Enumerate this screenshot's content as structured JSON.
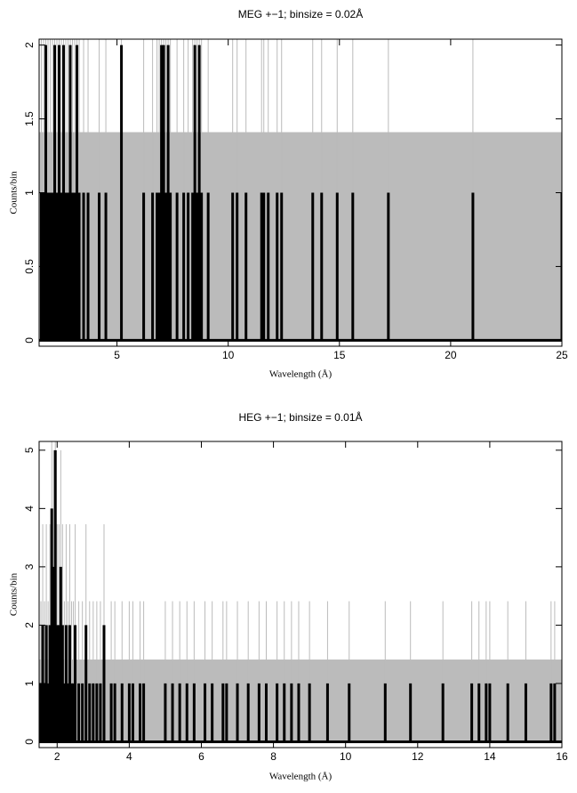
{
  "chart_data": [
    {
      "type": "spectrum",
      "title": "MEG +−1; binsize = 0.02Å",
      "x_label": "Wavelength (Å)",
      "y_label": "Counts/bin",
      "xlim": [
        1.5,
        25
      ],
      "ylim": [
        -0.04,
        2.04
      ],
      "xticks": [
        5,
        10,
        15,
        20,
        25
      ],
      "yticks": [
        0,
        0.5,
        1,
        1.5,
        2
      ],
      "band": 1.41,
      "band_color": "#bbbbbb",
      "color": "#000000",
      "error_color": "#bbbbbb",
      "x": [
        1.6,
        1.7,
        1.8,
        1.9,
        2.0,
        2.1,
        2.2,
        2.3,
        2.4,
        2.5,
        2.6,
        2.7,
        2.8,
        2.9,
        3.0,
        3.1,
        3.2,
        3.3,
        3.5,
        3.7,
        4.2,
        4.5,
        5.2,
        6.2,
        6.6,
        6.8,
        6.9,
        7.0,
        7.1,
        7.2,
        7.3,
        7.4,
        7.7,
        8.0,
        8.2,
        8.4,
        8.5,
        8.6,
        8.7,
        8.8,
        9.1,
        10.2,
        10.4,
        10.8,
        11.5,
        11.6,
        11.8,
        12.2,
        12.4,
        13.8,
        14.2,
        14.9,
        15.6,
        17.2,
        21.0,
        25.0
      ],
      "values": [
        1,
        1,
        2,
        1,
        1,
        1,
        2,
        1,
        2,
        1,
        2,
        1,
        1,
        2,
        1,
        1,
        2,
        1,
        1,
        1,
        1,
        1,
        2,
        1,
        1,
        1,
        1,
        2,
        2,
        1,
        2,
        1,
        1,
        1,
        1,
        1,
        2,
        1,
        2,
        1,
        1,
        1,
        1,
        1,
        1,
        1,
        1,
        1,
        1,
        1,
        1,
        1,
        1,
        1,
        1,
        1
      ],
      "errors": [
        1.41,
        1.41,
        1.73,
        1.41,
        1.41,
        1.41,
        1.73,
        1.41,
        1.73,
        1.41,
        1.73,
        1.41,
        1.41,
        1.73,
        1.41,
        1.41,
        1.73,
        1.41,
        1.41,
        1.41,
        1.41,
        1.41,
        1.73,
        1.41,
        1.41,
        1.41,
        1.41,
        1.73,
        1.73,
        1.41,
        1.73,
        1.41,
        1.41,
        1.41,
        1.41,
        1.41,
        1.73,
        1.41,
        1.73,
        1.41,
        1.41,
        1.41,
        1.41,
        1.41,
        1.41,
        1.41,
        1.41,
        1.41,
        1.41,
        1.41,
        1.41,
        1.41,
        1.41,
        1.41,
        1.41,
        1.41
      ]
    },
    {
      "type": "spectrum",
      "title": "HEG +−1; binsize = 0.01Å",
      "x_label": "Wavelength (Å)",
      "y_label": "Counts/bin",
      "xlim": [
        1.5,
        16
      ],
      "ylim": [
        -0.1,
        5.15
      ],
      "xticks": [
        2,
        4,
        6,
        8,
        10,
        12,
        14,
        16
      ],
      "yticks": [
        0,
        1,
        2,
        3,
        4,
        5
      ],
      "band": 1.41,
      "band_color": "#bbbbbb",
      "color": "#000000",
      "error_color": "#bbbbbb",
      "x": [
        1.55,
        1.6,
        1.65,
        1.7,
        1.75,
        1.8,
        1.85,
        1.9,
        1.95,
        2.0,
        2.05,
        2.1,
        2.15,
        2.2,
        2.25,
        2.3,
        2.35,
        2.4,
        2.45,
        2.5,
        2.6,
        2.7,
        2.8,
        2.9,
        3.0,
        3.1,
        3.2,
        3.3,
        3.5,
        3.6,
        3.8,
        4.0,
        4.1,
        4.3,
        4.4,
        5.0,
        5.2,
        5.4,
        5.6,
        5.8,
        6.1,
        6.3,
        6.6,
        6.7,
        7.0,
        7.3,
        7.6,
        7.8,
        8.1,
        8.3,
        8.5,
        8.7,
        9.0,
        9.5,
        10.1,
        11.1,
        11.8,
        12.7,
        13.5,
        13.7,
        13.9,
        14.0,
        14.5,
        15.0,
        15.7,
        15.8
      ],
      "values": [
        1,
        2,
        1,
        2,
        1,
        2,
        4,
        3,
        5,
        2,
        2,
        3,
        2,
        1,
        2,
        1,
        2,
        1,
        1,
        2,
        1,
        1,
        2,
        1,
        1,
        1,
        1,
        2,
        1,
        1,
        1,
        1,
        1,
        1,
        1,
        1,
        1,
        1,
        1,
        1,
        1,
        1,
        1,
        1,
        1,
        1,
        1,
        1,
        1,
        1,
        1,
        1,
        1,
        1,
        1,
        1,
        1,
        1,
        1,
        1,
        1,
        1,
        1,
        1,
        1,
        1
      ],
      "errors": [
        1.41,
        1.73,
        1.41,
        1.73,
        1.41,
        1.73,
        2.24,
        2.0,
        2.45,
        1.73,
        1.73,
        2.0,
        1.73,
        1.41,
        1.73,
        1.41,
        1.73,
        1.41,
        1.41,
        1.73,
        1.41,
        1.41,
        1.73,
        1.41,
        1.41,
        1.41,
        1.41,
        1.73,
        1.41,
        1.41,
        1.41,
        1.41,
        1.41,
        1.41,
        1.41,
        1.41,
        1.41,
        1.41,
        1.41,
        1.41,
        1.41,
        1.41,
        1.41,
        1.41,
        1.41,
        1.41,
        1.41,
        1.41,
        1.41,
        1.41,
        1.41,
        1.41,
        1.41,
        1.41,
        1.41,
        1.41,
        1.41,
        1.41,
        1.41,
        1.41,
        1.41,
        1.41,
        1.41,
        1.41,
        1.41,
        1.41
      ]
    }
  ]
}
